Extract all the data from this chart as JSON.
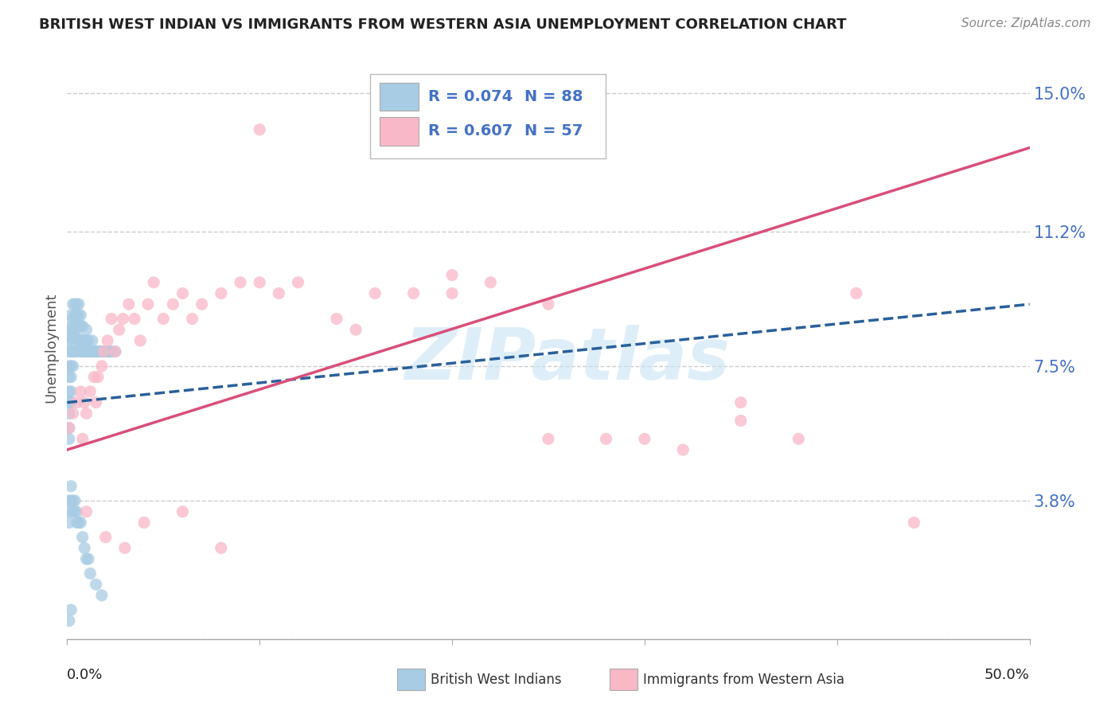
{
  "title": "BRITISH WEST INDIAN VS IMMIGRANTS FROM WESTERN ASIA UNEMPLOYMENT CORRELATION CHART",
  "source": "Source: ZipAtlas.com",
  "ylabel": "Unemployment",
  "watermark": "ZIPatlas",
  "legend_blue_r": "R = 0.074",
  "legend_blue_n": "N = 88",
  "legend_pink_r": "R = 0.607",
  "legend_pink_n": "N = 57",
  "blue_scatter_color": "#a8cce4",
  "pink_scatter_color": "#f9b8c8",
  "blue_line_color": "#2a6099",
  "pink_line_color": "#d94f7a",
  "blue_legend_color": "#a8cce4",
  "pink_legend_color": "#f9b8c8",
  "tick_color": "#4472c4",
  "background_color": "#ffffff",
  "grid_color": "#cccccc",
  "watermark_color": "#c8e4f5",
  "title_color": "#222222",
  "source_color": "#888888",
  "ylabel_color": "#555555",
  "xlim": [
    0.0,
    0.5
  ],
  "ylim": [
    0.0,
    0.16
  ],
  "yticks": [
    0.0,
    0.038,
    0.075,
    0.112,
    0.15
  ],
  "ytick_labels": [
    "",
    "3.8%",
    "7.5%",
    "11.2%",
    "15.0%"
  ],
  "bwi_x": [
    0.001,
    0.001,
    0.001,
    0.001,
    0.001,
    0.001,
    0.001,
    0.001,
    0.001,
    0.001,
    0.002,
    0.002,
    0.002,
    0.002,
    0.002,
    0.002,
    0.002,
    0.002,
    0.003,
    0.003,
    0.003,
    0.003,
    0.003,
    0.003,
    0.004,
    0.004,
    0.004,
    0.004,
    0.004,
    0.005,
    0.005,
    0.005,
    0.005,
    0.005,
    0.006,
    0.006,
    0.006,
    0.006,
    0.007,
    0.007,
    0.007,
    0.007,
    0.008,
    0.008,
    0.008,
    0.009,
    0.009,
    0.01,
    0.01,
    0.01,
    0.011,
    0.011,
    0.012,
    0.013,
    0.013,
    0.014,
    0.015,
    0.016,
    0.017,
    0.018,
    0.019,
    0.02,
    0.021,
    0.022,
    0.023,
    0.025,
    0.001,
    0.001,
    0.001,
    0.002,
    0.002,
    0.003,
    0.003,
    0.004,
    0.004,
    0.005,
    0.005,
    0.006,
    0.007,
    0.008,
    0.009,
    0.01,
    0.011,
    0.012,
    0.015,
    0.018,
    0.002,
    0.001
  ],
  "bwi_y": [
    0.085,
    0.082,
    0.079,
    0.075,
    0.072,
    0.068,
    0.065,
    0.062,
    0.058,
    0.055,
    0.089,
    0.086,
    0.083,
    0.079,
    0.075,
    0.072,
    0.068,
    0.065,
    0.092,
    0.088,
    0.085,
    0.082,
    0.079,
    0.075,
    0.092,
    0.089,
    0.086,
    0.083,
    0.079,
    0.092,
    0.089,
    0.086,
    0.083,
    0.079,
    0.092,
    0.089,
    0.086,
    0.082,
    0.089,
    0.086,
    0.082,
    0.079,
    0.086,
    0.082,
    0.079,
    0.082,
    0.079,
    0.085,
    0.082,
    0.079,
    0.082,
    0.079,
    0.079,
    0.082,
    0.079,
    0.079,
    0.079,
    0.079,
    0.079,
    0.079,
    0.079,
    0.079,
    0.079,
    0.079,
    0.079,
    0.079,
    0.038,
    0.035,
    0.032,
    0.042,
    0.038,
    0.038,
    0.035,
    0.038,
    0.035,
    0.035,
    0.032,
    0.032,
    0.032,
    0.028,
    0.025,
    0.022,
    0.022,
    0.018,
    0.015,
    0.012,
    0.008,
    0.005
  ],
  "wasia_x": [
    0.001,
    0.003,
    0.005,
    0.007,
    0.008,
    0.009,
    0.01,
    0.012,
    0.014,
    0.015,
    0.016,
    0.018,
    0.019,
    0.021,
    0.023,
    0.025,
    0.027,
    0.029,
    0.032,
    0.035,
    0.038,
    0.042,
    0.045,
    0.05,
    0.055,
    0.06,
    0.065,
    0.07,
    0.08,
    0.09,
    0.1,
    0.11,
    0.12,
    0.14,
    0.16,
    0.18,
    0.2,
    0.22,
    0.25,
    0.28,
    0.3,
    0.32,
    0.35,
    0.38,
    0.41,
    0.44,
    0.01,
    0.02,
    0.03,
    0.04,
    0.06,
    0.08,
    0.1,
    0.15,
    0.2,
    0.25,
    0.35
  ],
  "wasia_y": [
    0.058,
    0.062,
    0.065,
    0.068,
    0.055,
    0.065,
    0.062,
    0.068,
    0.072,
    0.065,
    0.072,
    0.075,
    0.079,
    0.082,
    0.088,
    0.079,
    0.085,
    0.088,
    0.092,
    0.088,
    0.082,
    0.092,
    0.098,
    0.088,
    0.092,
    0.095,
    0.088,
    0.092,
    0.095,
    0.098,
    0.098,
    0.095,
    0.098,
    0.088,
    0.095,
    0.095,
    0.1,
    0.098,
    0.092,
    0.055,
    0.055,
    0.052,
    0.06,
    0.055,
    0.095,
    0.032,
    0.035,
    0.028,
    0.025,
    0.032,
    0.035,
    0.025,
    0.14,
    0.085,
    0.095,
    0.055,
    0.065
  ],
  "blue_line_x": [
    0.0,
    0.5
  ],
  "blue_line_y": [
    0.065,
    0.092
  ],
  "pink_line_x": [
    0.0,
    0.5
  ],
  "pink_line_y": [
    0.052,
    0.135
  ]
}
